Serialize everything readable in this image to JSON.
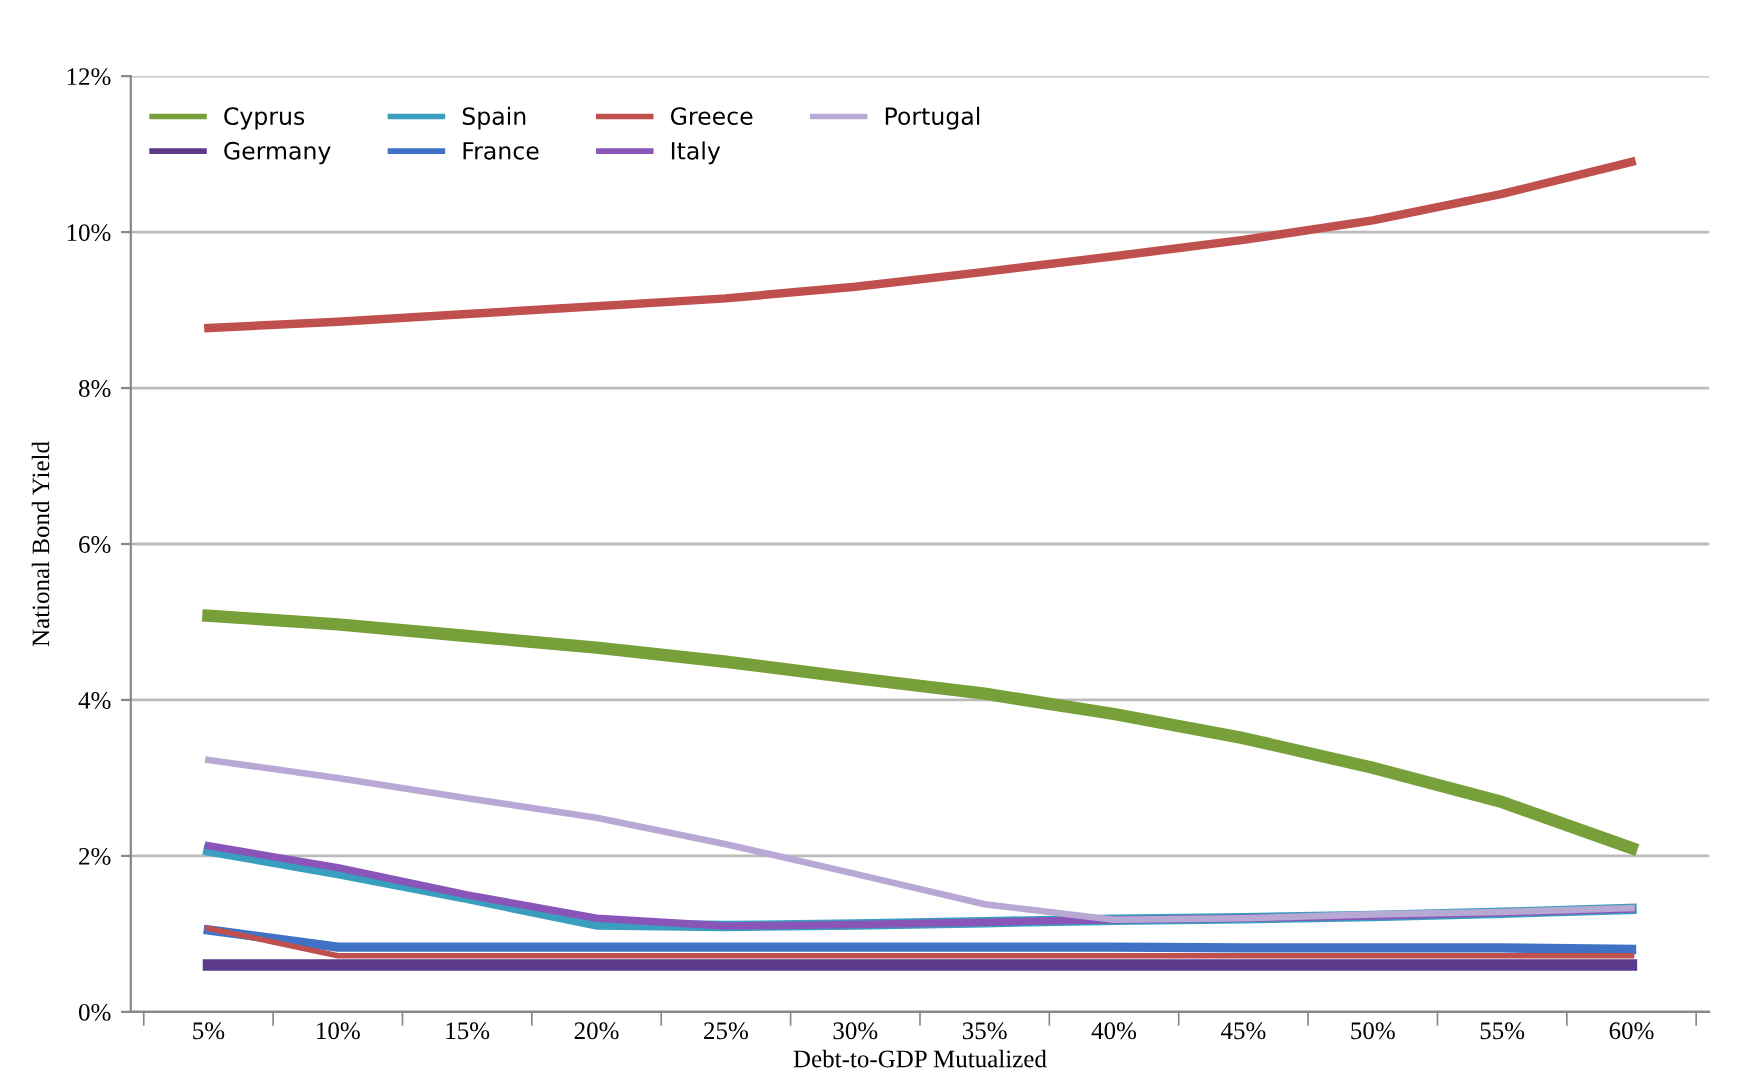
{
  "chart_data": {
    "type": "line",
    "xlabel": "Debt-to-GDP Mutualized",
    "ylabel": "National Bond Yield",
    "categories": [
      "5%",
      "10%",
      "15%",
      "20%",
      "25%",
      "30%",
      "35%",
      "40%",
      "45%",
      "50%",
      "55%",
      "60%"
    ],
    "ylim": [
      0,
      12
    ],
    "yticks": [
      {
        "value": 0,
        "label": "0%"
      },
      {
        "value": 2,
        "label": "2%"
      },
      {
        "value": 4,
        "label": "4%"
      },
      {
        "value": 6,
        "label": "6%"
      },
      {
        "value": 8,
        "label": "8%"
      },
      {
        "value": 10,
        "label": "10%"
      },
      {
        "value": 12,
        "label": "12%"
      }
    ],
    "grid": "y",
    "legend": "top left",
    "marker": "none",
    "line_style": "solid",
    "series": [
      {
        "name": "Cyprus",
        "color": "#77a03a",
        "values": [
          5.08,
          4.97,
          4.82,
          4.67,
          4.49,
          4.28,
          4.08,
          3.82,
          3.51,
          3.13,
          2.69,
          2.1
        ]
      },
      {
        "name": "Germany",
        "color": "#5b3a8c",
        "values": [
          0.6,
          0.6,
          0.6,
          0.6,
          0.6,
          0.6,
          0.6,
          0.6,
          0.6,
          0.6,
          0.6,
          0.6
        ]
      },
      {
        "name": "Spain",
        "color": "#3a9fbf",
        "values": [
          2.07,
          1.78,
          1.46,
          1.12,
          1.1,
          1.12,
          1.15,
          1.18,
          1.2,
          1.23,
          1.27,
          1.32
        ]
      },
      {
        "name": "France",
        "color": "#3f72c4",
        "values": [
          1.05,
          0.83,
          0.83,
          0.83,
          0.83,
          0.83,
          0.83,
          0.83,
          0.82,
          0.82,
          0.82,
          0.8
        ]
      },
      {
        "name": "Greece",
        "color": "#c0504d",
        "values": [
          8.77,
          8.85,
          8.95,
          9.05,
          9.15,
          9.3,
          9.49,
          9.69,
          9.9,
          10.15,
          10.49,
          10.9
        ]
      },
      {
        "name": "Italy",
        "color": "#8a55b8",
        "values": [
          2.13,
          1.85,
          1.5,
          1.2,
          1.1,
          1.12,
          1.15,
          1.18,
          1.2,
          1.23,
          1.27,
          1.32
        ]
      },
      {
        "name": "Portugal",
        "color": "#b7a9d4",
        "values": [
          3.23,
          3.0,
          2.74,
          2.49,
          2.15,
          1.77,
          1.38,
          1.18,
          1.2,
          1.25,
          1.28,
          1.33
        ]
      },
      {
        "color": "#c0504d",
        "values": [
          1.07,
          0.72,
          0.72,
          0.72,
          0.72,
          0.72,
          0.72,
          0.72,
          0.72,
          0.72,
          0.72,
          0.72
        ]
      }
    ]
  }
}
